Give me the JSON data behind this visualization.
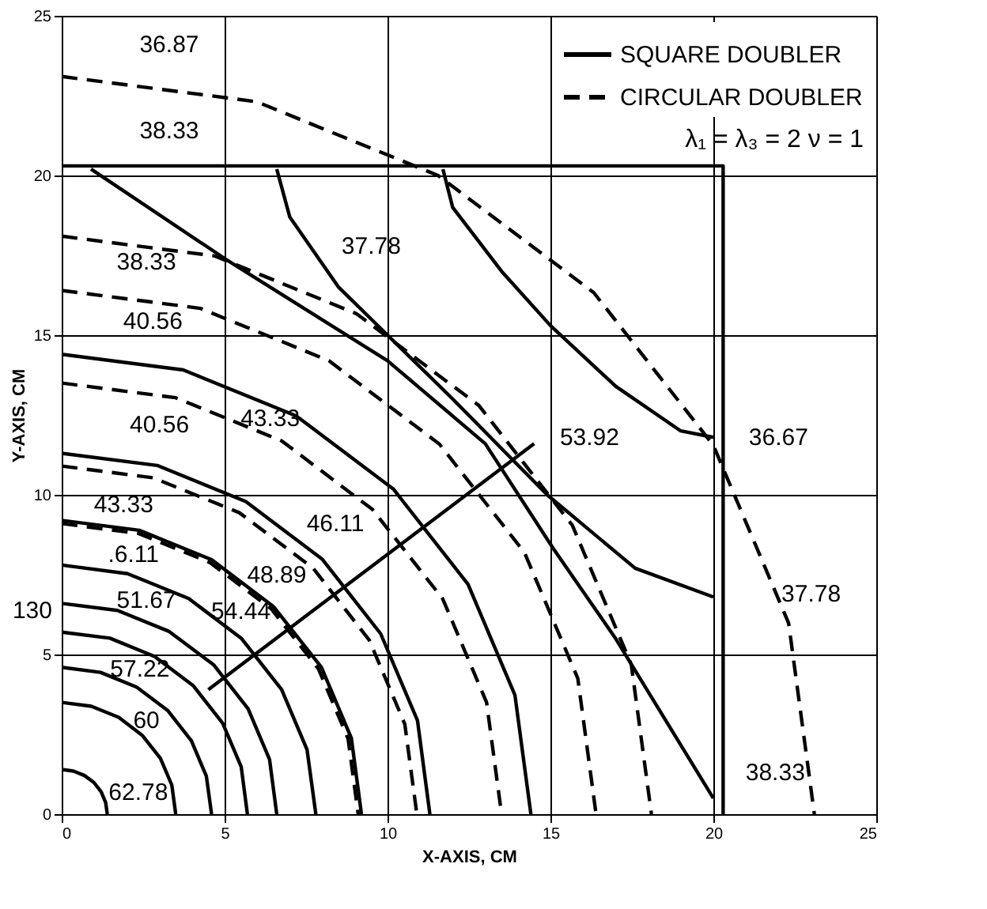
{
  "chart_data": {
    "type": "line",
    "xlabel": "X-AXIS, CM",
    "ylabel": "Y-AXIS, CM",
    "xlim": [
      0,
      25
    ],
    "ylim": [
      0,
      25
    ],
    "xticks": [
      0,
      5,
      10,
      15,
      20,
      25
    ],
    "yticks": [
      0,
      5,
      10,
      15,
      20,
      25
    ],
    "grid": true,
    "legend": "top right",
    "series": [
      {
        "name": "SQUARE DOUBLER",
        "color": "#000000",
        "line_style": "solid",
        "x": [
          0,
          0.36,
          0.7,
          0.99,
          1.21,
          1.35,
          1.4
        ],
        "values": [
          1.4,
          1.35,
          1.21,
          0.99,
          0.7,
          0.36,
          0
        ]
      },
      {
        "color": "#000000",
        "line_style": "solid",
        "x": [
          0,
          0.91,
          1.75,
          2.47,
          3.03,
          3.38,
          3.5
        ],
        "values": [
          3.5,
          3.38,
          3.03,
          2.47,
          1.75,
          0.91,
          0
        ]
      },
      {
        "color": "#000000",
        "line_style": "solid",
        "x": [
          0,
          1.19,
          2.3,
          3.25,
          3.98,
          4.44,
          4.6
        ],
        "values": [
          4.6,
          4.44,
          3.98,
          3.25,
          2.3,
          1.19,
          0
        ]
      },
      {
        "color": "#000000",
        "line_style": "solid",
        "x": [
          0,
          1.48,
          2.85,
          4.03,
          4.94,
          5.51,
          5.7
        ],
        "values": [
          5.7,
          5.51,
          4.94,
          4.03,
          2.85,
          1.48,
          0
        ]
      },
      {
        "color": "#000000",
        "line_style": "solid",
        "x": [
          0,
          1.71,
          3.3,
          4.67,
          5.72,
          6.38,
          6.6
        ],
        "values": [
          6.6,
          6.38,
          5.72,
          4.67,
          3.3,
          1.71,
          0
        ]
      },
      {
        "color": "#000000",
        "line_style": "solid",
        "x": [
          0,
          2.02,
          3.9,
          5.51,
          6.75,
          7.53,
          7.8
        ],
        "values": [
          7.8,
          7.53,
          6.75,
          5.51,
          3.9,
          2.02,
          0
        ]
      },
      {
        "color": "#000000",
        "line_style": "solid",
        "x": [
          0,
          2.38,
          4.6,
          6.5,
          7.97,
          8.89,
          9.2
        ],
        "values": [
          9.2,
          8.89,
          7.97,
          6.5,
          4.6,
          2.38,
          0
        ]
      },
      {
        "color": "#000000",
        "line_style": "solid",
        "x": [
          0,
          2.93,
          5.65,
          7.99,
          9.79,
          10.92,
          11.3
        ],
        "values": [
          11.3,
          10.92,
          9.79,
          7.99,
          5.65,
          2.93,
          0
        ]
      },
      {
        "color": "#000000",
        "line_style": "solid",
        "x": [
          0,
          3.73,
          7.2,
          10.18,
          12.47,
          13.91,
          14.4
        ],
        "values": [
          14.4,
          13.91,
          12.47,
          10.18,
          7.2,
          3.73,
          0
        ]
      },
      {
        "color": "#000000",
        "line_style": "solid",
        "x": [
          0.9,
          5,
          10,
          13,
          15.1,
          17,
          18.5,
          20
        ],
        "values": [
          20.2,
          17.4,
          14.2,
          11.6,
          8.3,
          5.5,
          3.0,
          0.5
        ]
      },
      {
        "color": "#000000",
        "line_style": "solid",
        "x": [
          6.6,
          7,
          8.5,
          10,
          12,
          14.9,
          17.6,
          20
        ],
        "values": [
          20.2,
          18.7,
          16.5,
          15.0,
          13.0,
          10.0,
          7.7,
          6.8
        ]
      },
      {
        "color": "#000000",
        "line_style": "solid",
        "x": [
          11.7,
          12,
          13.5,
          15,
          17,
          19,
          20
        ],
        "values": [
          20.2,
          19,
          17,
          15.3,
          13.4,
          12.0,
          11.8
        ]
      },
      {
        "color": "#000000",
        "line_style": "solid",
        "x": [
          4.5,
          14.5
        ],
        "values": [
          3.9,
          11.6
        ]
      },
      {
        "color": "#000000",
        "line_style": "solid",
        "x": [
          0,
          20.3,
          20.3
        ],
        "values": [
          20.3,
          20.3,
          0
        ]
      },
      {
        "name": "CIRCULAR DOUBLER",
        "color": "#000000",
        "line_style": "dashed",
        "x": [
          0,
          2.36,
          4.55,
          6.43,
          7.88,
          8.79,
          9.1
        ],
        "values": [
          9.1,
          8.79,
          7.88,
          6.43,
          4.55,
          2.36,
          0
        ]
      },
      {
        "color": "#000000",
        "line_style": "dashed",
        "x": [
          0,
          2.82,
          5.45,
          7.71,
          9.44,
          10.53,
          10.9
        ],
        "values": [
          10.9,
          10.53,
          9.44,
          7.71,
          5.45,
          2.82,
          0
        ]
      },
      {
        "color": "#000000",
        "line_style": "dashed",
        "x": [
          0,
          3.5,
          6.75,
          9.54,
          11.69,
          13.04,
          13.5
        ],
        "values": [
          13.5,
          13.04,
          11.69,
          9.54,
          6.75,
          3.5,
          0
        ]
      },
      {
        "color": "#000000",
        "line_style": "dashed",
        "x": [
          0,
          4.25,
          8.2,
          11.59,
          14.2,
          15.84,
          16.4
        ],
        "values": [
          16.4,
          15.84,
          14.2,
          11.59,
          8.2,
          4.25,
          0
        ]
      },
      {
        "color": "#000000",
        "line_style": "dashed",
        "x": [
          0,
          4.69,
          9.05,
          12.8,
          15.67,
          17.48,
          18.1
        ],
        "values": [
          18.1,
          17.48,
          15.67,
          12.8,
          9.05,
          4.69,
          0
        ]
      },
      {
        "color": "#000000",
        "line_style": "dashed",
        "x": [
          0,
          5.98,
          11.55,
          16.33,
          20.0,
          22.31,
          23.1
        ],
        "values": [
          23.1,
          22.31,
          20.0,
          16.33,
          11.55,
          5.98,
          0
        ]
      }
    ],
    "annotations": [
      "λ₁ = λ₃ = 2   ν = 1",
      "130",
      "36.87",
      "38.33",
      "38.33",
      "37.78",
      "40.56",
      "40.56",
      "43.33",
      "43.33",
      "46.11",
      ".6.11",
      "48.89",
      "51.67",
      "54.44",
      "57.22",
      "60",
      "62.78",
      "53.92",
      "36.67",
      "37.78",
      "38.33"
    ]
  }
}
